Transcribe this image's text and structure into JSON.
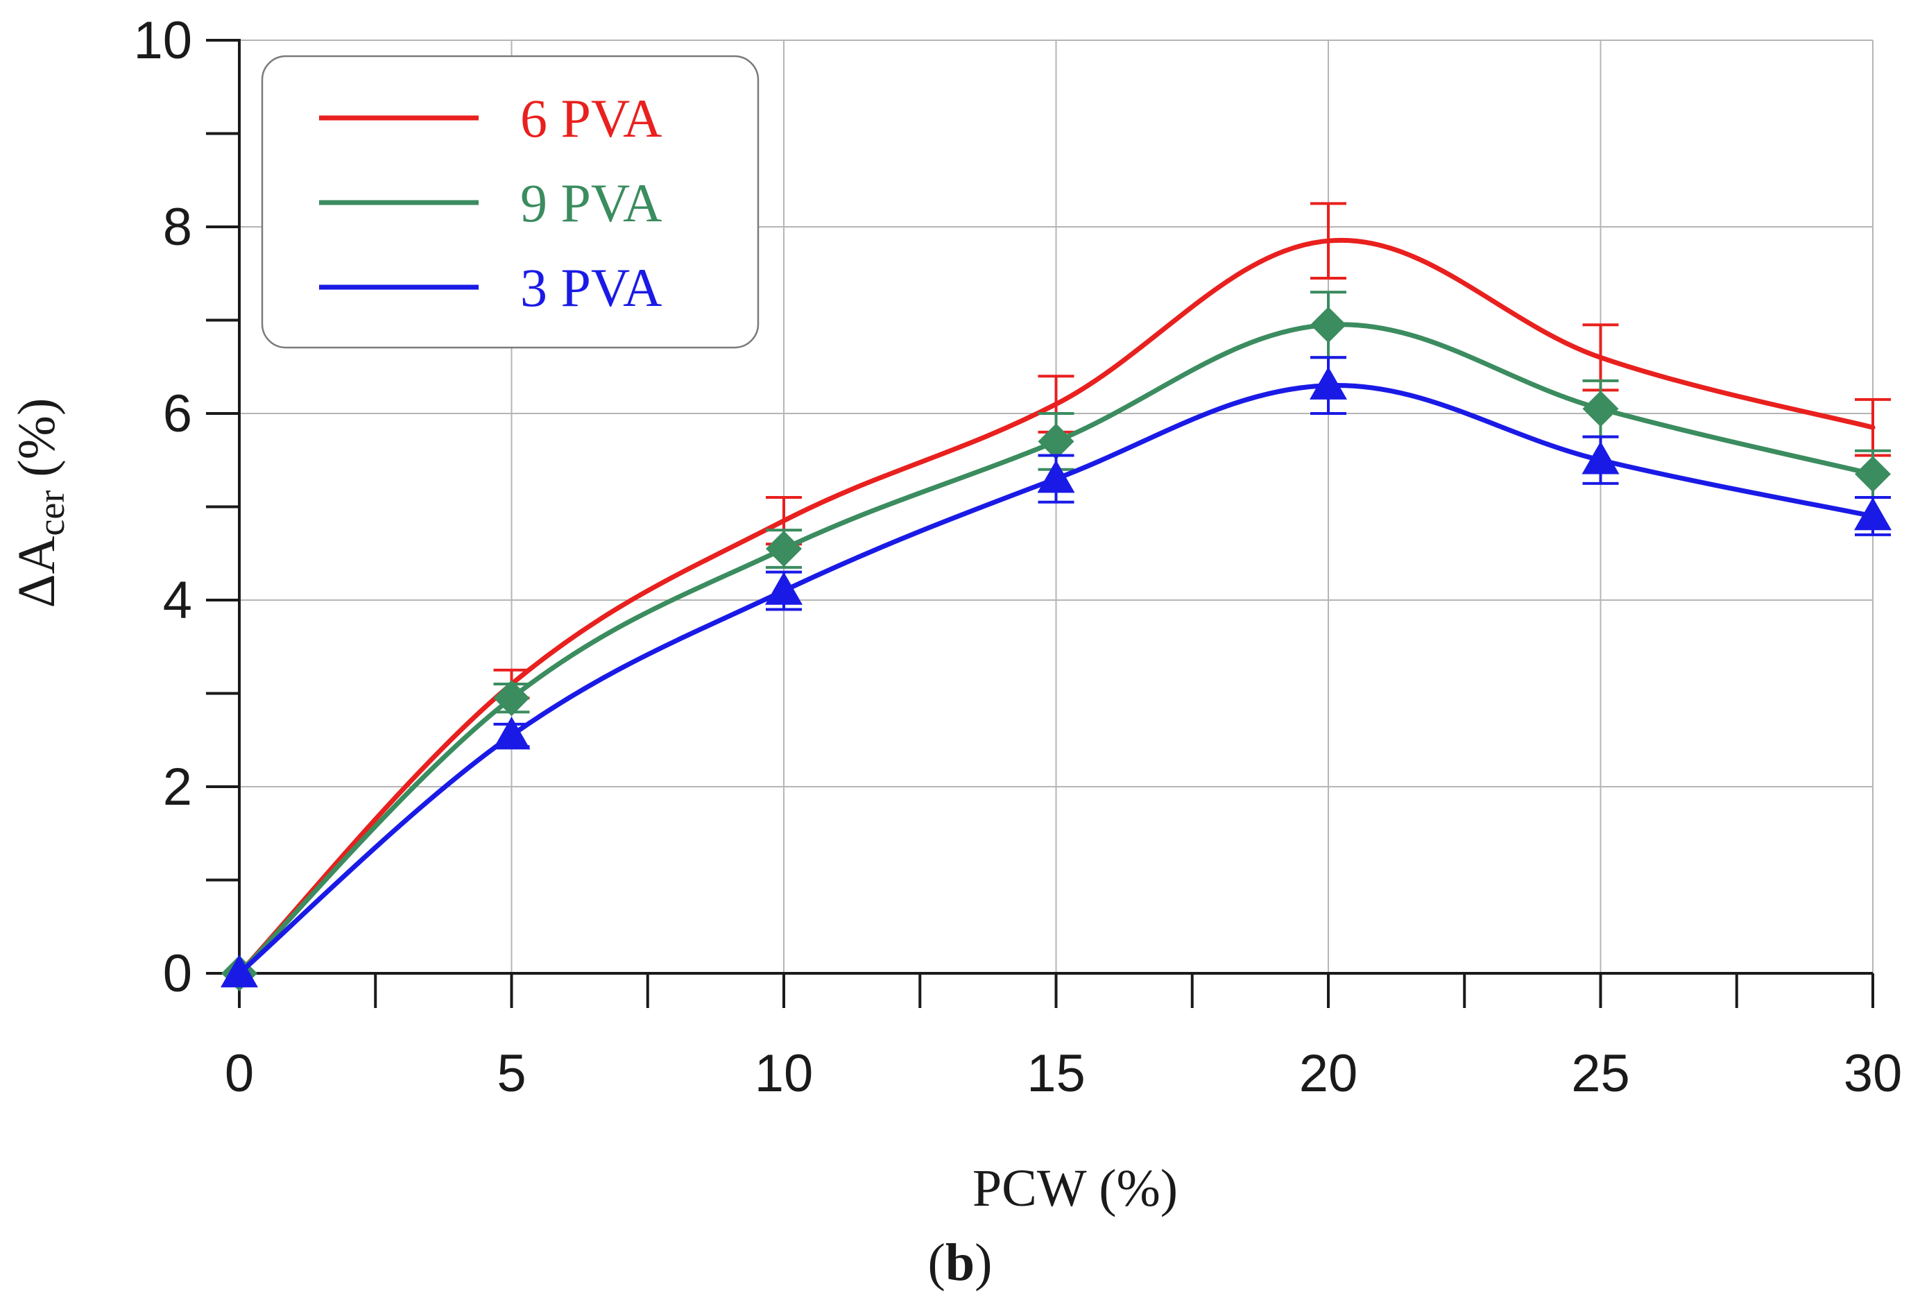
{
  "chart_data": {
    "type": "line",
    "title": "",
    "panel_label_text": "b",
    "xlabel": "PCW (%)",
    "ylabel": {
      "prefix": "ΔA",
      "subscript": "cer",
      "suffix": " (%)"
    },
    "xlim": [
      0,
      30
    ],
    "ylim": [
      0,
      10
    ],
    "x_ticks": [
      0,
      5,
      10,
      15,
      20,
      25,
      30
    ],
    "x_minor_ticks": [
      2.5,
      7.5,
      12.5,
      17.5,
      22.5,
      27.5
    ],
    "y_ticks": [
      0,
      2,
      4,
      6,
      8,
      10
    ],
    "y_minor_ticks": [
      1,
      3,
      5,
      7,
      9
    ],
    "grid": true,
    "legend_position": "top-left",
    "x": [
      0,
      5,
      10,
      15,
      20,
      25,
      30
    ],
    "series": [
      {
        "name": "6 PVA",
        "color": "#e8201e",
        "marker": "none",
        "values": [
          0,
          3.1,
          4.85,
          6.1,
          7.85,
          6.6,
          5.85
        ],
        "errors": [
          0,
          0.15,
          0.25,
          0.3,
          0.4,
          0.35,
          0.3
        ]
      },
      {
        "name": "9 PVA",
        "color": "#3b8c5f",
        "marker": "diamond",
        "values": [
          0,
          2.95,
          4.55,
          5.7,
          6.95,
          6.05,
          5.35
        ],
        "errors": [
          0,
          0.15,
          0.2,
          0.3,
          0.35,
          0.3,
          0.25
        ]
      },
      {
        "name": "3 PVA",
        "color": "#1a1ae6",
        "marker": "triangle",
        "values": [
          0,
          2.55,
          4.1,
          5.3,
          6.3,
          5.5,
          4.9
        ],
        "errors": [
          0,
          0.12,
          0.2,
          0.25,
          0.3,
          0.25,
          0.2
        ]
      }
    ]
  }
}
